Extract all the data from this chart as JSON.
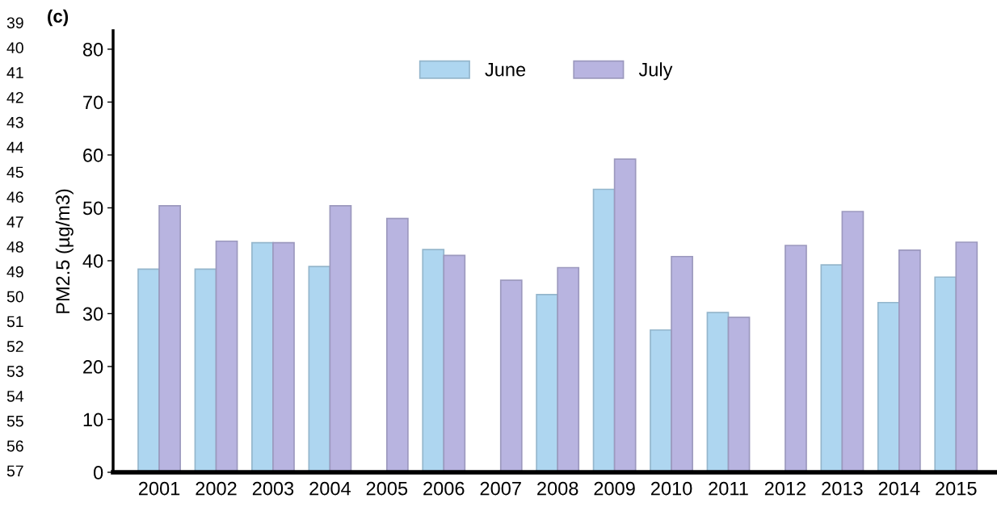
{
  "chart_data": {
    "type": "bar",
    "ylabel": "PM2.5 (µg/m3)",
    "categories": [
      "2001",
      "2002",
      "2003",
      "2004",
      "2005",
      "2006",
      "2007",
      "2008",
      "2009",
      "2010",
      "2011",
      "2012",
      "2013",
      "2014",
      "2015"
    ],
    "series": [
      {
        "name": "June",
        "color": "#aed6f0",
        "values": [
          38.4,
          38.4,
          43.4,
          38.9,
          null,
          42.1,
          null,
          33.6,
          53.5,
          26.9,
          30.2,
          null,
          39.2,
          32.1,
          36.9
        ]
      },
      {
        "name": "July",
        "color": "#b8b4e0",
        "values": [
          50.4,
          43.7,
          43.4,
          50.4,
          48.0,
          41.0,
          36.3,
          38.7,
          59.2,
          40.8,
          29.3,
          42.9,
          49.3,
          42.0,
          43.5
        ]
      }
    ],
    "ylim": [
      0,
      83.5
    ],
    "yticks": [
      0,
      10,
      20,
      30,
      40,
      50,
      60,
      70,
      80
    ],
    "grid": false,
    "legend": "top",
    "annotations": [
      "(c)",
      "39",
      "40",
      "41",
      "42",
      "43",
      "44",
      "45",
      "46",
      "47",
      "48",
      "49",
      "50",
      "51",
      "52",
      "53",
      "54",
      "55",
      "56",
      "57"
    ]
  }
}
